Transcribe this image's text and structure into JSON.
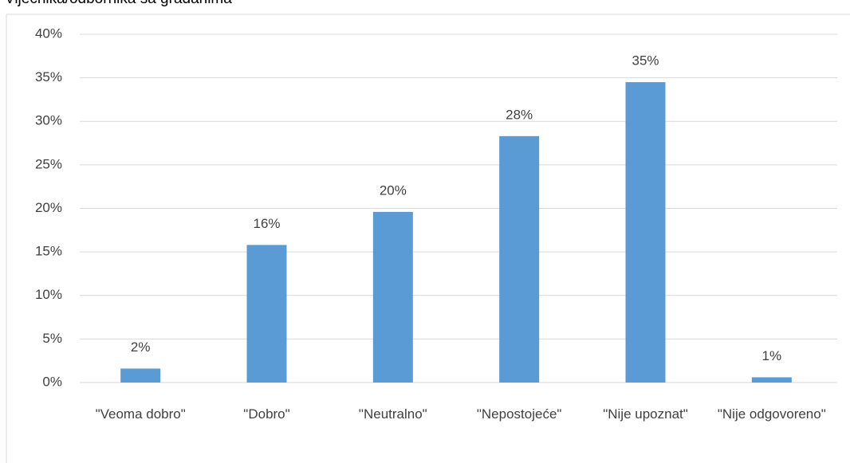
{
  "chart_data": {
    "type": "bar",
    "title": "Vijećnika/odbornika sa građanima",
    "categories": [
      "\"Veoma dobro\"",
      "\"Dobro\"",
      "\"Neutralno\"",
      "\"Nepostojeće\"",
      "\"Nije upoznat\"",
      "\"Nije odgovoreno\""
    ],
    "values": [
      1.6,
      15.8,
      19.6,
      28.3,
      34.5,
      0.6
    ],
    "value_labels": [
      "2%",
      "16%",
      "20%",
      "28%",
      "35%",
      "1%"
    ],
    "color": "#5b9bd5",
    "ylim": [
      0,
      40
    ],
    "yticks": [
      {
        "value": 0,
        "label": "0%"
      },
      {
        "value": 5,
        "label": "5%"
      },
      {
        "value": 10,
        "label": "10%"
      },
      {
        "value": 15,
        "label": "15%"
      },
      {
        "value": 20,
        "label": "20%"
      },
      {
        "value": 25,
        "label": "25%"
      },
      {
        "value": 30,
        "label": "30%"
      },
      {
        "value": 35,
        "label": "35%"
      },
      {
        "value": 40,
        "label": "40%"
      }
    ],
    "grid": true
  }
}
